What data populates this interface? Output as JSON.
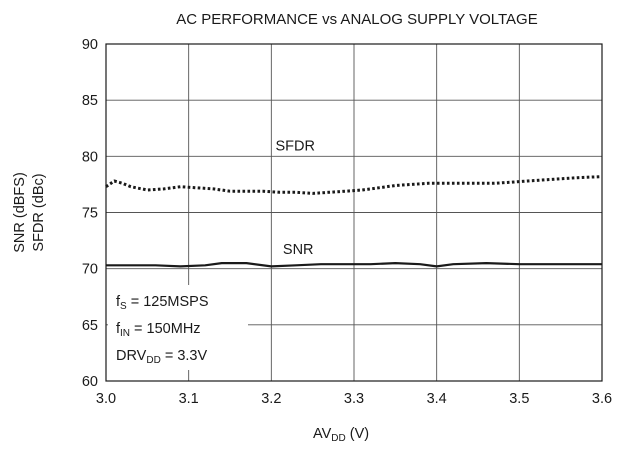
{
  "chart_data": {
    "type": "line",
    "title": "AC PERFORMANCE vs ANALOG SUPPLY VOLTAGE",
    "xlabel": {
      "main": "AV",
      "sub": "DD",
      "suffix": " (V)"
    },
    "ylabel_lines": [
      "SNR (dBFS)",
      "SFDR (dBc)"
    ],
    "xlim": [
      3.0,
      3.6
    ],
    "ylim": [
      60,
      90
    ],
    "xticks": [
      "3.0",
      "3.1",
      "3.2",
      "3.3",
      "3.4",
      "3.5",
      "3.6"
    ],
    "yticks": [
      "60",
      "65",
      "70",
      "75",
      "80",
      "85",
      "90"
    ],
    "grid": true,
    "series": [
      {
        "name": "SFDR",
        "style": "dotted",
        "x": [
          3.0,
          3.01,
          3.02,
          3.03,
          3.05,
          3.07,
          3.09,
          3.11,
          3.13,
          3.15,
          3.17,
          3.19,
          3.21,
          3.23,
          3.25,
          3.27,
          3.29,
          3.31,
          3.33,
          3.35,
          3.37,
          3.39,
          3.41,
          3.43,
          3.45,
          3.47,
          3.49,
          3.51,
          3.53,
          3.55,
          3.57,
          3.6
        ],
        "y": [
          77.3,
          77.8,
          77.6,
          77.3,
          77.0,
          77.1,
          77.3,
          77.2,
          77.1,
          76.9,
          76.9,
          76.9,
          76.8,
          76.8,
          76.7,
          76.8,
          76.9,
          77.0,
          77.2,
          77.4,
          77.5,
          77.6,
          77.6,
          77.6,
          77.6,
          77.6,
          77.7,
          77.8,
          77.9,
          78.0,
          78.1,
          78.2
        ]
      },
      {
        "name": "SNR",
        "style": "solid",
        "x": [
          3.0,
          3.03,
          3.06,
          3.09,
          3.12,
          3.14,
          3.17,
          3.2,
          3.23,
          3.26,
          3.29,
          3.32,
          3.35,
          3.38,
          3.4,
          3.42,
          3.46,
          3.5,
          3.55,
          3.6
        ],
        "y": [
          70.3,
          70.3,
          70.3,
          70.2,
          70.3,
          70.5,
          70.5,
          70.2,
          70.3,
          70.4,
          70.4,
          70.4,
          70.5,
          70.4,
          70.2,
          70.4,
          70.5,
          70.4,
          70.4,
          70.4
        ]
      }
    ],
    "series_labels": [
      {
        "text": "SFDR",
        "x": 3.205,
        "y": 80.5
      },
      {
        "text": "SNR",
        "x": 3.214,
        "y": 71.3
      }
    ],
    "annotations": [
      {
        "main": "f",
        "sub": "S",
        "suffix": " = 125MSPS"
      },
      {
        "main": "f",
        "sub": "IN",
        "suffix": " = 150MHz"
      },
      {
        "main": "DRV",
        "sub": "DD",
        "suffix": " = 3.3V"
      }
    ]
  }
}
